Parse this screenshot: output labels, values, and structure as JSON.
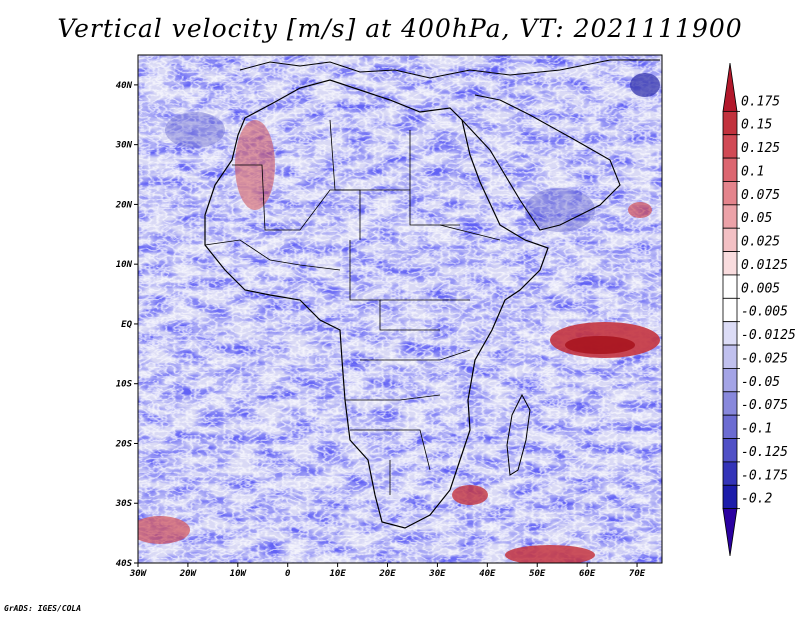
{
  "title": "Vertical velocity [m/s] at 400hPa, VT: 2021111900",
  "credit": "GrADS: IGES/COLA",
  "map": {
    "lon_range": [
      -30,
      75
    ],
    "lat_range": [
      -40,
      45
    ],
    "x_ticks": [
      "30W",
      "20W",
      "10W",
      "0",
      "10E",
      "20E",
      "30E",
      "40E",
      "50E",
      "60E",
      "70E"
    ],
    "x_tick_values": [
      -30,
      -20,
      -10,
      0,
      10,
      20,
      30,
      40,
      50,
      60,
      70
    ],
    "y_ticks": [
      "40N",
      "30N",
      "20N",
      "10N",
      "EQ",
      "10S",
      "20S",
      "30S",
      "40S"
    ],
    "y_tick_values": [
      40,
      30,
      20,
      10,
      0,
      -10,
      -20,
      -30,
      -40
    ]
  },
  "colorbar": {
    "labels": [
      "0.175",
      "0.15",
      "0.125",
      "0.1",
      "0.075",
      "0.05",
      "0.025",
      "0.0125",
      "0.005",
      "-0.005",
      "-0.0125",
      "-0.025",
      "-0.05",
      "-0.075",
      "-0.1",
      "-0.125",
      "-0.175",
      "-0.2"
    ],
    "colors": [
      "#b2182b",
      "#c2323d",
      "#d14a55",
      "#dc6670",
      "#e4848c",
      "#eca2a8",
      "#f3c0c4",
      "#f9dcde",
      "#ffffff",
      "#ffffff",
      "#dcdcf6",
      "#c0c0ee",
      "#a4a4e6",
      "#8888dc",
      "#6c6cd2",
      "#5050c6",
      "#3434b8",
      "#1c1caa",
      "#2a00a0"
    ]
  }
}
